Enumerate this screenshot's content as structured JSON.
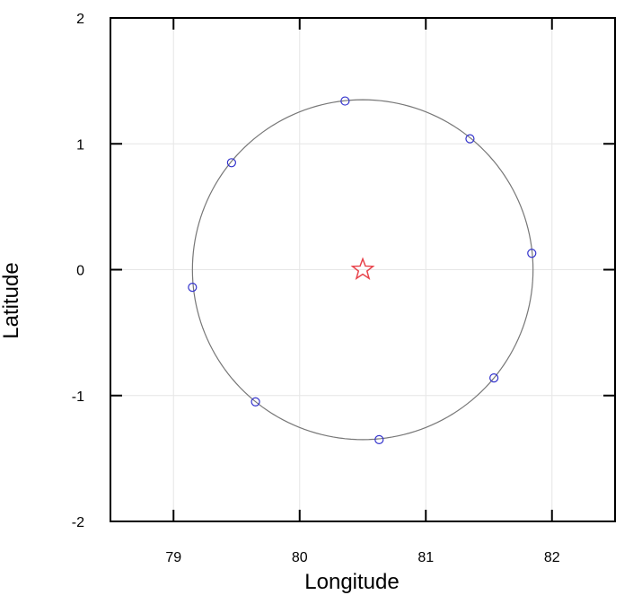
{
  "chart_data": {
    "type": "scatter",
    "title": "",
    "xlabel": "Longitude",
    "ylabel": "Latitude",
    "xlim": [
      78.5,
      82.5
    ],
    "ylim": [
      -2,
      2
    ],
    "xticks": [
      79,
      80,
      81,
      82
    ],
    "yticks": [
      -2,
      -1,
      0,
      1,
      2
    ],
    "grid": true,
    "center": {
      "x": 80.5,
      "y": 0,
      "marker": "star",
      "color": "#e8424a"
    },
    "circle": {
      "cx": 80.5,
      "cy": 0,
      "radius": 1.35,
      "color": "#777777"
    },
    "points": {
      "marker": "circle",
      "color": "#3333cc",
      "x": [
        80.36,
        81.35,
        81.84,
        81.54,
        80.63,
        79.65,
        79.15,
        79.46
      ],
      "y": [
        1.34,
        1.04,
        0.13,
        -0.86,
        -1.35,
        -1.05,
        -0.14,
        0.85
      ]
    }
  }
}
